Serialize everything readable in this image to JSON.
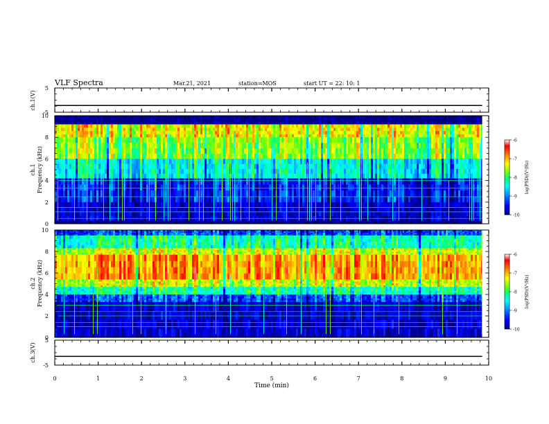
{
  "header": {
    "title": "VLF Spectra",
    "date": "Mar.21, 2021",
    "station": "station=MOS",
    "start": "start  UT =   22: 10: 1"
  },
  "colors": {
    "colormap": [
      "#000080",
      "#0000ff",
      "#00a0ff",
      "#00ffff",
      "#00ff80",
      "#80ff00",
      "#ffff00",
      "#ff8000",
      "#ff0000",
      "#ffffff"
    ]
  },
  "chart_data": [
    {
      "type": "line",
      "panel": "ch1-voltage",
      "ylabel": "ch.1(V)",
      "ylim": [
        -5,
        5
      ],
      "yticks": [
        {
          "v": 5,
          "label": "5"
        },
        {
          "v": -5,
          "label": "-5"
        }
      ],
      "series": [
        {
          "x": [
            0,
            10
          ],
          "y": [
            -2.2,
            -2.2
          ]
        }
      ]
    },
    {
      "type": "heatmap",
      "panel": "ch1-spectrogram",
      "ylabel_line1": "ch.1",
      "ylabel_line2": "Frequency (kHz)",
      "ylim": [
        0,
        10
      ],
      "yticks": [
        "0",
        "2",
        "4",
        "6",
        "8",
        "10"
      ],
      "colorbar": {
        "label": "log(PSD)(V²/Hz)",
        "ticks": [
          "-6",
          "-7",
          "-8",
          "-9",
          "-10"
        ],
        "range": [
          -10,
          -6
        ]
      },
      "bands": [
        {
          "freq_kHz": [
            9.2,
            10.0
          ],
          "logPSD": -10.0
        },
        {
          "freq_kHz": [
            8.0,
            9.2
          ],
          "logPSD": -7.2
        },
        {
          "freq_kHz": [
            6.0,
            8.0
          ],
          "logPSD": -7.6
        },
        {
          "freq_kHz": [
            4.2,
            6.0
          ],
          "logPSD": -8.4
        },
        {
          "freq_kHz": [
            2.0,
            4.2
          ],
          "logPSD": -9.4
        },
        {
          "freq_kHz": [
            0.3,
            2.0
          ],
          "logPSD": -9.7
        },
        {
          "freq_kHz": [
            0.0,
            0.3
          ],
          "logPSD": -10.0
        }
      ],
      "lines_kHz": [
        0.5,
        1.1,
        1.5,
        2.5,
        3.3,
        4.0
      ]
    },
    {
      "type": "heatmap",
      "panel": "ch2-spectrogram",
      "ylabel_line1": "ch.2",
      "ylabel_line2": "Frequency (kHz)",
      "ylim": [
        0,
        10
      ],
      "yticks": [
        "0",
        "2",
        "4",
        "6",
        "8",
        "10"
      ],
      "colorbar": {
        "label": "log(PSD)(V²/Hz)",
        "ticks": [
          "-6",
          "-7",
          "-8",
          "-9",
          "-10"
        ],
        "range": [
          -10,
          -6
        ]
      },
      "bands": [
        {
          "freq_kHz": [
            9.5,
            10.0
          ],
          "logPSD": -9.2
        },
        {
          "freq_kHz": [
            8.3,
            9.5
          ],
          "logPSD": -8.2
        },
        {
          "freq_kHz": [
            7.7,
            8.3
          ],
          "logPSD": -7.4
        },
        {
          "freq_kHz": [
            5.4,
            7.7
          ],
          "logPSD": -6.9
        },
        {
          "freq_kHz": [
            4.7,
            5.4
          ],
          "logPSD": -7.4
        },
        {
          "freq_kHz": [
            4.0,
            4.7
          ],
          "logPSD": -8.2
        },
        {
          "freq_kHz": [
            3.3,
            4.0
          ],
          "logPSD": -9.2
        },
        {
          "freq_kHz": [
            0.0,
            3.3
          ],
          "logPSD": -9.7
        }
      ],
      "lines_kHz": [
        1.0,
        1.4,
        2.0,
        2.4,
        3.0
      ]
    },
    {
      "type": "line",
      "panel": "ch3-voltage",
      "ylabel": "ch.3(V)",
      "ylim": [
        -5,
        5
      ],
      "yticks": [
        {
          "v": 5,
          "label": "5"
        },
        {
          "v": -5,
          "label": "-5"
        }
      ],
      "series": [
        {
          "x": [
            0,
            10
          ],
          "y": [
            -1.5,
            -1.5
          ]
        }
      ]
    }
  ],
  "xaxis": {
    "label": "Time (min)",
    "xlim": [
      0,
      10
    ],
    "ticks": [
      "0",
      "1",
      "2",
      "3",
      "4",
      "5",
      "6",
      "7",
      "8",
      "9",
      "10"
    ],
    "data_end_min": 9.85
  }
}
